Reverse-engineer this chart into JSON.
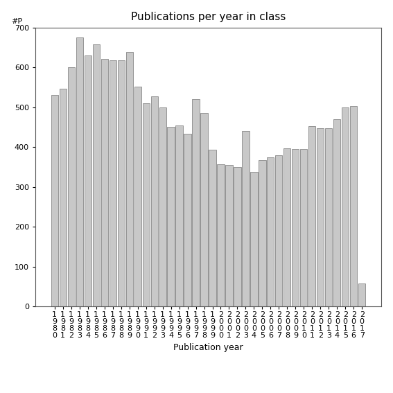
{
  "title": "Publications per year in class",
  "xlabel": "Publication year",
  "ylabel": "#P",
  "years": [
    "1980",
    "1981",
    "1982",
    "1983",
    "1984",
    "1985",
    "1986",
    "1987",
    "1988",
    "1989",
    "1990",
    "1991",
    "1992",
    "1993",
    "1994",
    "1995",
    "1996",
    "1997",
    "1998",
    "1999",
    "2000",
    "2001",
    "2002",
    "2003",
    "2004",
    "2005",
    "2006",
    "2007",
    "2008",
    "2009",
    "2010",
    "2011",
    "2012",
    "2013",
    "2014",
    "2015",
    "2016",
    "2017"
  ],
  "values": [
    530,
    547,
    600,
    675,
    630,
    658,
    622,
    618,
    617,
    638,
    552,
    510,
    528,
    500,
    450,
    455,
    433,
    520,
    485,
    393,
    357,
    355,
    350,
    440,
    338,
    367,
    375,
    380,
    397,
    395,
    395,
    452,
    447,
    448,
    470,
    500,
    503,
    57
  ],
  "bar_color": "#c8c8c8",
  "bar_edge_color": "#888888",
  "ylim": [
    0,
    700
  ],
  "yticks": [
    0,
    100,
    200,
    300,
    400,
    500,
    600,
    700
  ],
  "background_color": "#ffffff",
  "title_fontsize": 11,
  "axis_label_fontsize": 9,
  "tick_fontsize": 8
}
